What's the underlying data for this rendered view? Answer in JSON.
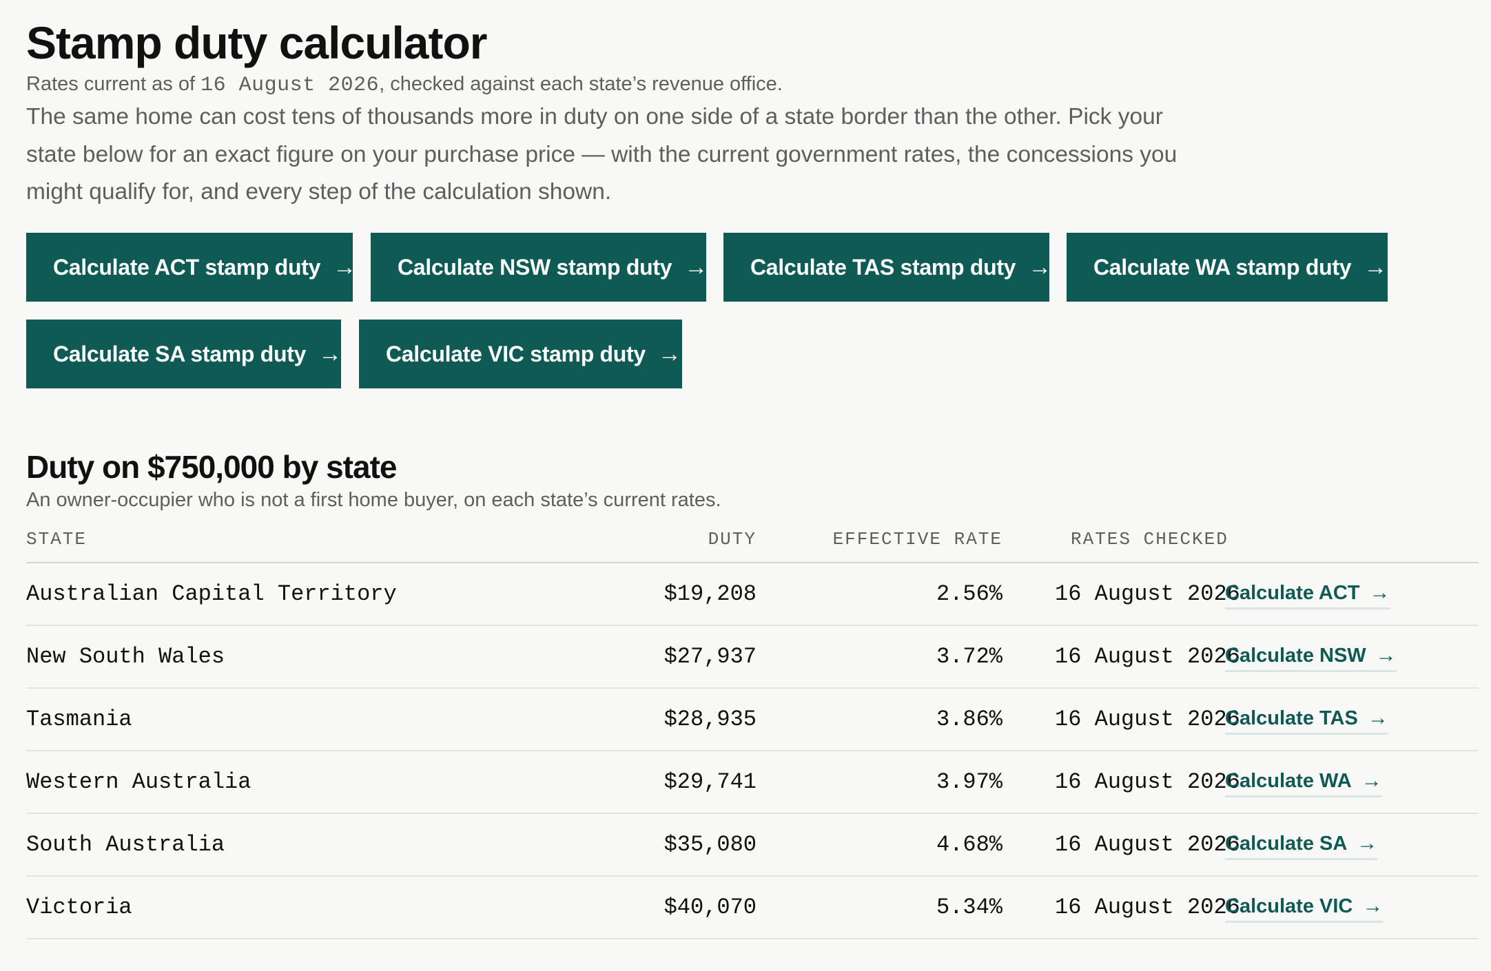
{
  "header": {
    "title": "Stamp duty calculator",
    "rates_prefix": "Rates current as of",
    "rates_date": "16 August 2026",
    "rates_suffix": ", checked against each state’s revenue office.",
    "intro": "The same home can cost tens of thousands more in duty on one side of a state border than the other. Pick your state below for an exact figure on your purchase price — with the current government rates, the concessions you might qualify for, and every step of the calculation shown."
  },
  "calculator_buttons": [
    {
      "label": "Calculate ACT stamp duty",
      "icon": "arrow-right-icon"
    },
    {
      "label": "Calculate NSW stamp duty",
      "icon": "arrow-right-icon"
    },
    {
      "label": "Calculate TAS stamp duty",
      "icon": "arrow-right-icon"
    },
    {
      "label": "Calculate WA stamp duty",
      "icon": "arrow-right-icon"
    },
    {
      "label": "Calculate SA stamp duty",
      "icon": "arrow-right-icon"
    },
    {
      "label": "Calculate VIC stamp duty",
      "icon": "arrow-right-icon"
    }
  ],
  "comparison": {
    "title": "Duty on $750,000 by state",
    "subtitle": "An owner-occupier who is not a first home buyer, on each state’s current rates.",
    "columns": {
      "state": "STATE",
      "duty": "DUTY",
      "effective_rate": "EFFECTIVE RATE",
      "rates_checked": "RATES CHECKED"
    },
    "rows": [
      {
        "state": "Australian Capital Territory",
        "duty": "$19,208",
        "effective_rate": "2.56%",
        "rates_checked": "16 August 2026",
        "link": "Calculate ACT"
      },
      {
        "state": "New South Wales",
        "duty": "$27,937",
        "effective_rate": "3.72%",
        "rates_checked": "16 August 2026",
        "link": "Calculate NSW"
      },
      {
        "state": "Tasmania",
        "duty": "$28,935",
        "effective_rate": "3.86%",
        "rates_checked": "16 August 2026",
        "link": "Calculate TAS"
      },
      {
        "state": "Western Australia",
        "duty": "$29,741",
        "effective_rate": "3.97%",
        "rates_checked": "16 August 2026",
        "link": "Calculate WA"
      },
      {
        "state": "South Australia",
        "duty": "$35,080",
        "effective_rate": "4.68%",
        "rates_checked": "16 August 2026",
        "link": "Calculate SA"
      },
      {
        "state": "Victoria",
        "duty": "$40,070",
        "effective_rate": "5.34%",
        "rates_checked": "16 August 2026",
        "link": "Calculate VIC"
      }
    ]
  },
  "icons": {
    "arrow": "→"
  },
  "colors": {
    "accent": "#0f5a55",
    "background": "#f8f8f6",
    "muted_text": "#5e5e5e"
  }
}
